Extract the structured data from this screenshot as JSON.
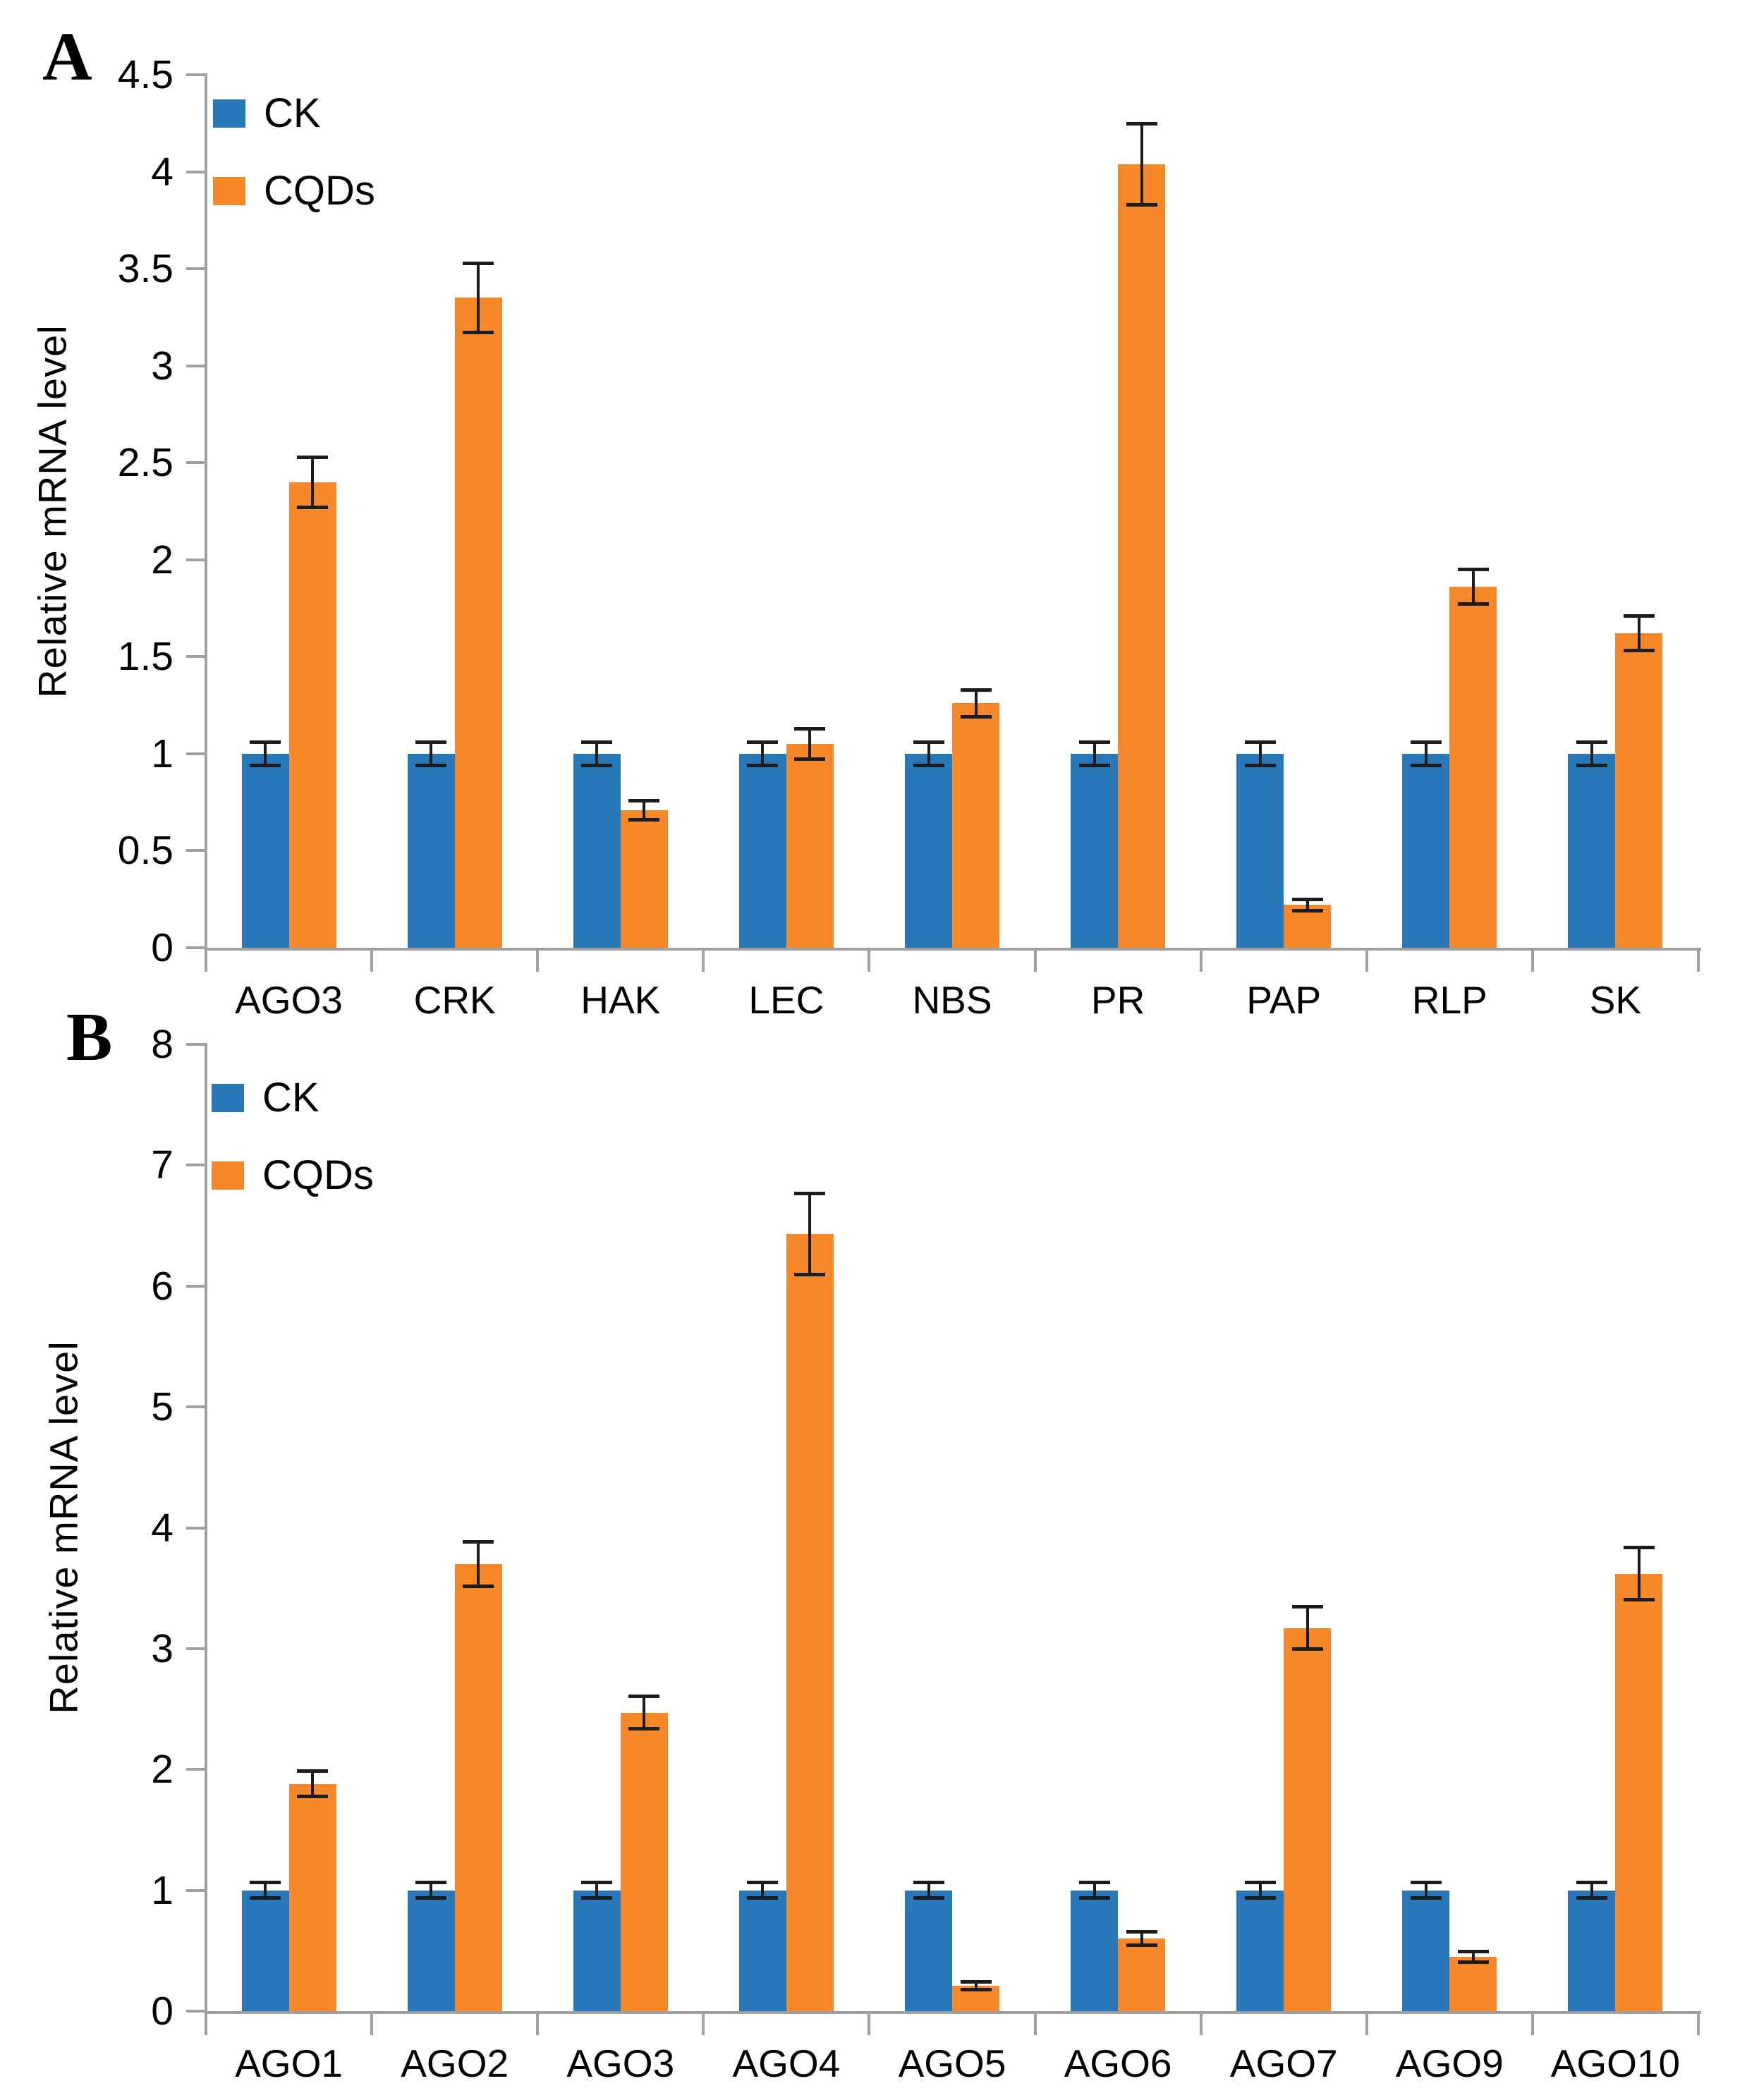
{
  "figure": {
    "colors": {
      "ck": "#2878B9",
      "cqds": "#F6882A",
      "axis": "#A0A0A0",
      "error": "#1C1C1C",
      "text": "#000000",
      "background": "#FFFFFF"
    }
  },
  "chart_data": [
    {
      "type": "bar",
      "panel_label": "A",
      "title": "",
      "xlabel": "",
      "ylabel": "Relative mRNA level",
      "ylim": [
        0,
        4.5
      ],
      "ytick_step": 0.5,
      "ytick_labels": [
        "0",
        "0.5",
        "1",
        "1.5",
        "2",
        "2.5",
        "3",
        "3.5",
        "4",
        "4.5"
      ],
      "grid": false,
      "legend_position": "top-left-inside",
      "legend": [
        "CK",
        "CQDs"
      ],
      "categories": [
        "AGO3",
        "CRK",
        "HAK",
        "LEC",
        "NBS",
        "PR",
        "PAP",
        "RLP",
        "SK"
      ],
      "series": [
        {
          "name": "CK",
          "color_key": "ck",
          "values": [
            1.0,
            1.0,
            1.0,
            1.0,
            1.0,
            1.0,
            1.0,
            1.0,
            1.0
          ],
          "errors": [
            0.05,
            0.05,
            0.05,
            0.05,
            0.05,
            0.05,
            0.05,
            0.05,
            0.05
          ]
        },
        {
          "name": "CQDs",
          "color_key": "cqds",
          "values": [
            2.4,
            3.35,
            0.71,
            1.05,
            1.26,
            4.04,
            0.22,
            1.86,
            1.62
          ],
          "errors": [
            0.12,
            0.17,
            0.04,
            0.07,
            0.06,
            0.2,
            0.02,
            0.08,
            0.08
          ]
        }
      ]
    },
    {
      "type": "bar",
      "panel_label": "B",
      "title": "",
      "xlabel": "",
      "ylabel": "Relative mRNA level",
      "ylim": [
        0,
        8
      ],
      "ytick_step": 1,
      "ytick_labels": [
        "0",
        "1",
        "2",
        "3",
        "4",
        "5",
        "6",
        "7",
        "8"
      ],
      "grid": false,
      "legend_position": "top-left-inside",
      "legend": [
        "CK",
        "CQDs"
      ],
      "categories": [
        "AGO1",
        "AGO2",
        "AGO3",
        "AGO4",
        "AGO5",
        "AGO6",
        "AGO7",
        "AGO9",
        "AGO10"
      ],
      "series": [
        {
          "name": "CK",
          "color_key": "ck",
          "values": [
            1.0,
            1.0,
            1.0,
            1.0,
            1.0,
            1.0,
            1.0,
            1.0,
            1.0
          ],
          "errors": [
            0.05,
            0.05,
            0.05,
            0.05,
            0.05,
            0.05,
            0.05,
            0.05,
            0.05
          ]
        },
        {
          "name": "CQDs",
          "color_key": "cqds",
          "values": [
            1.88,
            3.7,
            2.47,
            6.43,
            0.21,
            0.6,
            3.17,
            0.45,
            3.62
          ],
          "errors": [
            0.09,
            0.17,
            0.12,
            0.32,
            0.02,
            0.04,
            0.16,
            0.03,
            0.2
          ]
        }
      ]
    }
  ]
}
